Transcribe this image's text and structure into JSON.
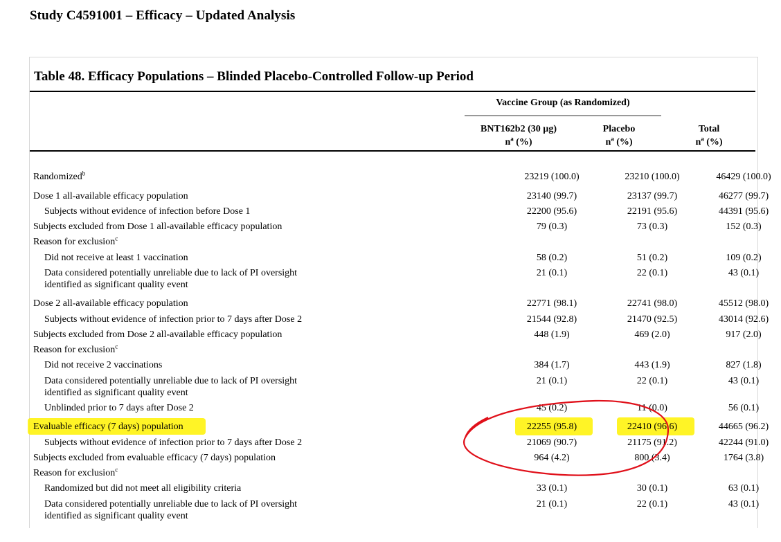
{
  "study_title": "Study C4591001 – Efficacy – Updated Analysis",
  "table_title": "Table 48.   Efficacy Populations – Blinded Placebo-Controlled Follow-up Period",
  "header": {
    "group": "Vaccine Group (as Randomized)",
    "columns": [
      {
        "name": "BNT162b2 (30 µg)",
        "sub": "n",
        "sup": "a",
        "suffix": " (%)"
      },
      {
        "name": "Placebo",
        "sub": "n",
        "sup": "a",
        "suffix": " (%)"
      },
      {
        "name": "Total",
        "sub": "n",
        "sup": "a",
        "suffix": " (%)"
      }
    ]
  },
  "rows": [
    {
      "label": "Randomized",
      "sup": "b",
      "indent": false,
      "values": [
        "23219 (100.0)",
        "23210 (100.0)",
        "46429 (100.0)"
      ]
    },
    {
      "label": "Dose 1 all-available efficacy population",
      "indent": false,
      "values": [
        "23140 (99.7)",
        "23137 (99.7)",
        "46277 (99.7)"
      ]
    },
    {
      "label": "Subjects without evidence of infection before Dose 1",
      "indent": true,
      "values": [
        "22200 (95.6)",
        "22191 (95.6)",
        "44391 (95.6)"
      ]
    },
    {
      "label": "Subjects excluded from Dose 1 all-available efficacy population",
      "indent": false,
      "values": [
        "79 (0.3)",
        "73 (0.3)",
        "152 (0.3)"
      ]
    },
    {
      "label": "Reason for exclusion",
      "sup": "c",
      "indent": false,
      "values": [
        "",
        "",
        ""
      ]
    },
    {
      "label": "Did not receive at least 1 vaccination",
      "indent": true,
      "values": [
        "58 (0.2)",
        "51 (0.2)",
        "109 (0.2)"
      ]
    },
    {
      "label": "Data considered potentially unreliable due to lack of PI oversight",
      "label2": "identified as significant quality event",
      "indent": true,
      "values": [
        "21 (0.1)",
        "22 (0.1)",
        "43 (0.1)"
      ]
    },
    {
      "label": "Dose 2 all-available efficacy population",
      "indent": false,
      "values": [
        "22771 (98.1)",
        "22741 (98.0)",
        "45512 (98.0)"
      ]
    },
    {
      "label": "Subjects without evidence of infection prior to 7 days after Dose 2",
      "indent": true,
      "values": [
        "21544 (92.8)",
        "21470 (92.5)",
        "43014 (92.6)"
      ]
    },
    {
      "label": "Subjects excluded from Dose 2 all-available efficacy population",
      "indent": false,
      "values": [
        "448 (1.9)",
        "469 (2.0)",
        "917 (2.0)"
      ]
    },
    {
      "label": "Reason for exclusion",
      "sup": "c",
      "indent": false,
      "values": [
        "",
        "",
        ""
      ]
    },
    {
      "label": "Did not receive 2 vaccinations",
      "indent": true,
      "values": [
        "384 (1.7)",
        "443 (1.9)",
        "827 (1.8)"
      ]
    },
    {
      "label": "Data considered potentially unreliable due to lack of PI oversight",
      "label2": "identified as significant quality event",
      "indent": true,
      "values": [
        "21 (0.1)",
        "22 (0.1)",
        "43 (0.1)"
      ]
    },
    {
      "label": "Unblinded prior to 7 days after Dose 2",
      "indent": true,
      "values": [
        "45 (0.2)",
        "11 (0.0)",
        "56 (0.1)"
      ]
    },
    {
      "label": "Evaluable efficacy (7 days) population",
      "indent": false,
      "highlight": true,
      "values": [
        "22255 (95.8)",
        "22410 (96.6)",
        "44665 (96.2)"
      ]
    },
    {
      "label": "Subjects without evidence of infection prior to 7 days after Dose 2",
      "indent": true,
      "values": [
        "21069 (90.7)",
        "21175 (91.2)",
        "42244 (91.0)"
      ]
    },
    {
      "label": "Subjects excluded from evaluable efficacy (7 days) population",
      "indent": false,
      "values": [
        "964 (4.2)",
        "800 (3.4)",
        "1764 (3.8)"
      ]
    },
    {
      "label": "Reason for exclusion",
      "sup": "c",
      "indent": false,
      "values": [
        "",
        "",
        ""
      ]
    },
    {
      "label": "Randomized but did not meet all eligibility criteria",
      "indent": true,
      "values": [
        "33 (0.1)",
        "30 (0.1)",
        "63 (0.1)"
      ]
    },
    {
      "label": "Data considered potentially unreliable due to lack of PI oversight",
      "label2": "identified as significant quality event",
      "indent": true,
      "values": [
        "21 (0.1)",
        "22 (0.1)",
        "43 (0.1)"
      ]
    }
  ],
  "annotation_colors": {
    "highlight": "#fff200",
    "circle": "#e0101a"
  }
}
